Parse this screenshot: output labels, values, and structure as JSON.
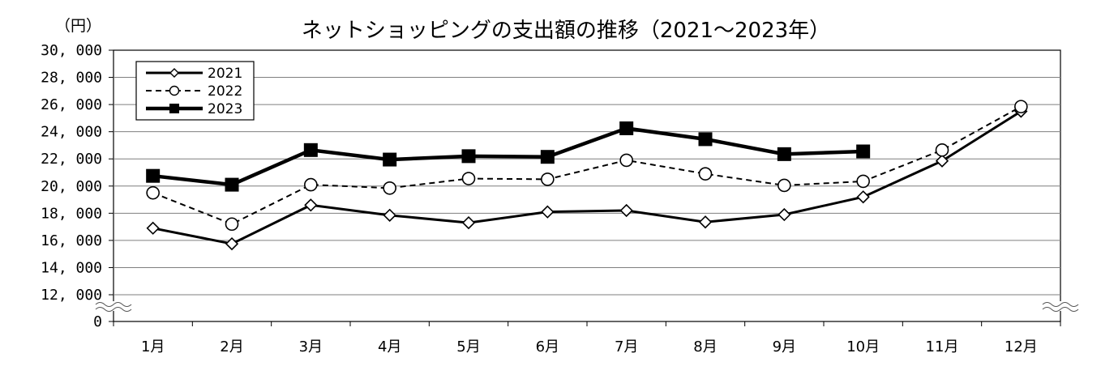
{
  "chart_data": {
    "type": "line",
    "title": "ネットショッピングの支出額の推移（2021～2023年）",
    "unit_label": "（円）",
    "categories": [
      "1月",
      "2月",
      "3月",
      "4月",
      "5月",
      "6月",
      "7月",
      "8月",
      "9月",
      "10月",
      "11月",
      "12月"
    ],
    "y_tick_labels": [
      "0",
      "12, 000",
      "14, 000",
      "16, 000",
      "18, 000",
      "20, 000",
      "22, 000",
      "24, 000",
      "26, 000",
      "28, 000",
      "30, 000"
    ],
    "y_tick_values": [
      0,
      12000,
      14000,
      16000,
      18000,
      20000,
      22000,
      24000,
      26000,
      28000,
      30000
    ],
    "ylim": [
      0,
      30000
    ],
    "axis_break": "between 0 and 12,000",
    "grid": true,
    "legend_position": "top-left",
    "series": [
      {
        "name": "2021",
        "style": "solid",
        "marker": "open-diamond",
        "values": [
          16900,
          15750,
          18600,
          17850,
          17300,
          18100,
          18200,
          17350,
          17900,
          19200,
          21850,
          25500
        ]
      },
      {
        "name": "2022",
        "style": "dashed",
        "marker": "open-circle",
        "values": [
          19500,
          17200,
          20100,
          19850,
          20550,
          20500,
          21900,
          20900,
          20050,
          20350,
          22650,
          25850
        ]
      },
      {
        "name": "2023",
        "style": "bold-solid",
        "marker": "filled-square",
        "values": [
          20750,
          20100,
          22650,
          21950,
          22200,
          22150,
          24250,
          23450,
          22350,
          22550,
          null,
          null
        ]
      }
    ]
  }
}
